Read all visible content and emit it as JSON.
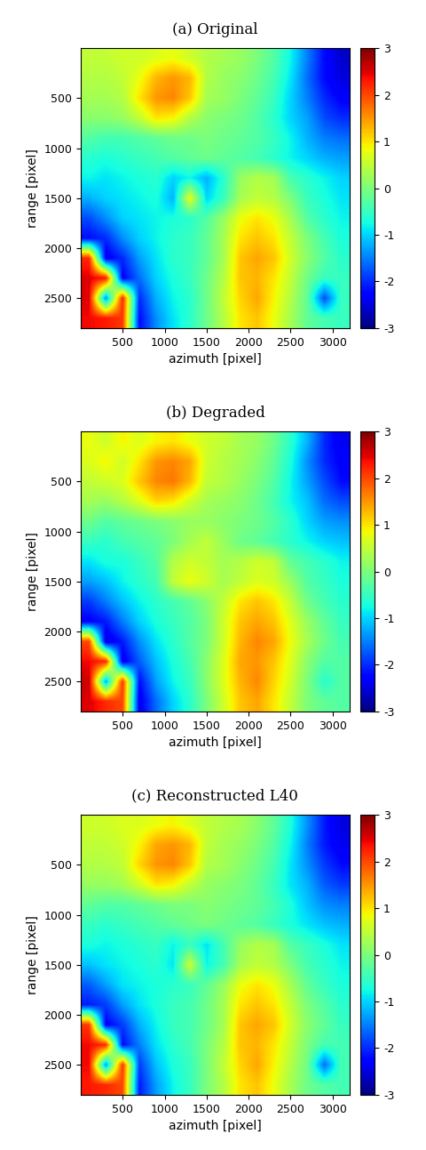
{
  "chart_data": [
    {
      "type": "heatmap",
      "title": "(a) Original",
      "x_label": "azimuth [pixel]",
      "y_label": "range [pixel]",
      "xlim": [
        0,
        3200
      ],
      "ylim": [
        2800,
        0
      ],
      "xticks": [
        500,
        1000,
        1500,
        2000,
        2500,
        3000
      ],
      "yticks": [
        500,
        1000,
        1500,
        2000,
        2500
      ],
      "color": "jet",
      "colorbar_range": [
        -3,
        3
      ],
      "colorbar_ticks": [
        -3,
        -2,
        -1,
        0,
        1,
        2,
        3
      ],
      "cells": [
        [
          0.5,
          0.5,
          0.6,
          0.6,
          0.7,
          0.8,
          0.6,
          0.4,
          0.3,
          0.2,
          0.0,
          -0.3,
          -0.8,
          -1.5,
          -2.2,
          -2.6
        ],
        [
          0.4,
          0.4,
          0.5,
          0.8,
          1.3,
          1.5,
          1.3,
          0.4,
          0.2,
          0.1,
          -0.1,
          -0.4,
          -0.9,
          -1.6,
          -2.2,
          -2.5
        ],
        [
          0.3,
          0.3,
          0.4,
          1.0,
          1.5,
          1.6,
          1.2,
          0.3,
          0.2,
          0.0,
          -0.2,
          -0.5,
          -1.0,
          -1.5,
          -2.0,
          -2.3
        ],
        [
          0.1,
          0.1,
          0.2,
          0.5,
          1.0,
          0.9,
          0.4,
          0.1,
          0.0,
          -0.1,
          -0.3,
          -0.6,
          -1.0,
          -1.3,
          -1.8,
          -2.0
        ],
        [
          -0.3,
          -0.4,
          -0.4,
          -0.3,
          -0.2,
          -0.1,
          -0.1,
          0.0,
          -0.1,
          -0.2,
          -0.3,
          -0.5,
          -0.8,
          -1.2,
          -1.5,
          -1.6
        ],
        [
          -0.6,
          -0.7,
          -0.6,
          -0.5,
          -0.4,
          -0.3,
          -0.2,
          -0.1,
          -0.2,
          -0.3,
          -0.4,
          -0.6,
          -0.8,
          -1.0,
          -1.2,
          -1.3
        ],
        [
          -0.8,
          -0.9,
          -0.8,
          -0.7,
          -0.6,
          -1.0,
          -0.8,
          -1.2,
          -0.6,
          0.2,
          0.4,
          0.3,
          -0.4,
          -0.6,
          -0.8,
          -1.0
        ],
        [
          -1.2,
          -1.0,
          -0.9,
          -0.8,
          -0.7,
          -1.2,
          0.8,
          -1.0,
          -0.5,
          0.3,
          0.5,
          0.4,
          0.0,
          -0.5,
          -0.7,
          -0.9
        ],
        [
          -1.8,
          -1.4,
          -1.0,
          -0.9,
          -0.8,
          -0.7,
          -0.6,
          -0.3,
          0.2,
          0.8,
          1.0,
          0.8,
          0.3,
          -0.3,
          -0.6,
          -0.8
        ],
        [
          -2.2,
          -2.0,
          -1.4,
          -1.0,
          -0.8,
          -0.6,
          -0.5,
          -0.2,
          0.3,
          1.0,
          1.2,
          1.0,
          0.5,
          0.0,
          -0.4,
          -0.7
        ],
        [
          2.2,
          -2.4,
          -2.0,
          -1.3,
          -0.9,
          -0.6,
          -0.5,
          -0.2,
          0.3,
          1.2,
          1.4,
          1.2,
          0.6,
          0.1,
          -0.3,
          -0.6
        ],
        [
          2.5,
          2.3,
          -2.3,
          -1.6,
          -1.0,
          -0.7,
          -0.5,
          -0.1,
          0.4,
          1.2,
          1.3,
          1.0,
          0.5,
          -0.1,
          -0.5,
          -0.5
        ],
        [
          2.5,
          -1.5,
          2.2,
          -2.0,
          -1.2,
          -0.8,
          -0.6,
          -0.1,
          0.5,
          1.1,
          1.4,
          0.9,
          0.4,
          -0.2,
          -1.8,
          -0.5
        ],
        [
          2.4,
          2.3,
          2.1,
          -2.2,
          -1.4,
          -0.9,
          -0.6,
          -0.1,
          0.4,
          1.0,
          1.2,
          0.8,
          0.3,
          -0.2,
          -0.4,
          -0.5
        ]
      ]
    },
    {
      "type": "heatmap",
      "title": "(b) Degraded",
      "x_label": "azimuth [pixel]",
      "y_label": "range [pixel]",
      "xlim": [
        0,
        3200
      ],
      "ylim": [
        2800,
        0
      ],
      "xticks": [
        500,
        1000,
        1500,
        2000,
        2500,
        3000
      ],
      "yticks": [
        500,
        1000,
        1500,
        2000,
        2500
      ],
      "color": "jet",
      "colorbar_range": [
        -3,
        3
      ],
      "colorbar_ticks": [
        -3,
        -2,
        -1,
        0,
        1,
        2,
        3
      ],
      "cells": [
        [
          0.8,
          0.6,
          0.9,
          0.7,
          0.9,
          1.0,
          0.8,
          0.6,
          0.5,
          0.3,
          0.2,
          -0.1,
          -0.6,
          -1.2,
          -2.0,
          -2.4
        ],
        [
          0.7,
          0.9,
          0.6,
          1.0,
          1.5,
          1.6,
          1.4,
          0.6,
          0.4,
          0.3,
          0.1,
          -0.2,
          -0.7,
          -1.4,
          -2.0,
          -2.3
        ],
        [
          0.5,
          0.6,
          0.7,
          1.2,
          1.6,
          1.7,
          1.3,
          0.5,
          0.4,
          0.2,
          0.0,
          -0.3,
          -0.8,
          -1.3,
          -1.8,
          -2.2
        ],
        [
          0.3,
          0.2,
          0.4,
          0.7,
          1.1,
          1.0,
          0.6,
          0.3,
          0.2,
          0.1,
          -0.1,
          -0.4,
          -0.8,
          -1.1,
          -1.6,
          -1.8
        ],
        [
          -0.1,
          -0.3,
          -0.2,
          -0.1,
          0.0,
          0.1,
          0.2,
          0.2,
          0.1,
          0.0,
          -0.1,
          -0.3,
          -0.6,
          -1.0,
          -1.3,
          -1.4
        ],
        [
          -0.5,
          -0.6,
          -0.4,
          -0.3,
          -0.2,
          0.0,
          0.3,
          0.5,
          0.2,
          -0.1,
          -0.2,
          -0.4,
          -0.6,
          -0.8,
          -1.0,
          -1.1
        ],
        [
          -0.9,
          -0.7,
          -0.7,
          -0.5,
          -0.3,
          0.4,
          0.6,
          0.5,
          0.3,
          0.4,
          0.6,
          0.5,
          -0.2,
          -0.4,
          -0.6,
          -0.8
        ],
        [
          -1.3,
          -1.1,
          -0.8,
          -0.6,
          -0.4,
          0.5,
          0.8,
          0.6,
          0.3,
          0.5,
          0.7,
          0.6,
          0.2,
          -0.3,
          -0.5,
          -0.7
        ],
        [
          -1.9,
          -1.5,
          -1.1,
          -0.8,
          -0.6,
          -0.4,
          -0.2,
          0.1,
          0.5,
          1.0,
          1.2,
          1.0,
          0.5,
          -0.1,
          -0.4,
          -0.6
        ],
        [
          -2.3,
          -2.1,
          -1.5,
          -1.0,
          -0.7,
          -0.5,
          -0.3,
          0.0,
          0.6,
          1.2,
          1.4,
          1.2,
          0.7,
          0.2,
          -0.2,
          -0.5
        ],
        [
          2.0,
          -2.5,
          -2.1,
          -1.4,
          -0.9,
          -0.6,
          -0.3,
          0.0,
          0.6,
          1.3,
          1.6,
          1.4,
          0.8,
          0.3,
          -0.1,
          -0.4
        ],
        [
          2.4,
          2.2,
          -2.4,
          -1.7,
          -1.1,
          -0.7,
          -0.4,
          0.1,
          0.7,
          1.4,
          1.5,
          1.2,
          0.7,
          0.1,
          -0.3,
          -0.3
        ],
        [
          2.6,
          -1.3,
          2.1,
          -2.2,
          -1.3,
          -0.8,
          -0.5,
          0.1,
          0.7,
          1.3,
          1.6,
          1.1,
          0.6,
          0.0,
          -0.6,
          -0.3
        ],
        [
          2.5,
          2.2,
          2.0,
          -2.4,
          -1.6,
          -1.0,
          -0.6,
          0.0,
          0.6,
          1.2,
          1.4,
          1.0,
          0.5,
          0.0,
          -0.2,
          -0.3
        ]
      ]
    },
    {
      "type": "heatmap",
      "title": "(c) Reconstructed L40",
      "x_label": "azimuth [pixel]",
      "y_label": "range [pixel]",
      "xlim": [
        0,
        3200
      ],
      "ylim": [
        2800,
        0
      ],
      "xticks": [
        500,
        1000,
        1500,
        2000,
        2500,
        3000
      ],
      "yticks": [
        500,
        1000,
        1500,
        2000,
        2500
      ],
      "color": "jet",
      "colorbar_range": [
        -3,
        3
      ],
      "colorbar_ticks": [
        -3,
        -2,
        -1,
        0,
        1,
        2,
        3
      ],
      "cells": [
        [
          0.6,
          0.6,
          0.7,
          0.7,
          0.8,
          0.9,
          0.7,
          0.5,
          0.4,
          0.3,
          0.1,
          -0.2,
          -0.7,
          -1.4,
          -2.1,
          -2.5
        ],
        [
          0.5,
          0.5,
          0.6,
          0.9,
          1.4,
          1.5,
          1.3,
          0.5,
          0.3,
          0.2,
          0.0,
          -0.3,
          -0.8,
          -1.5,
          -2.1,
          -2.4
        ],
        [
          0.4,
          0.4,
          0.5,
          1.1,
          1.5,
          1.6,
          1.2,
          0.4,
          0.3,
          0.1,
          -0.1,
          -0.4,
          -0.9,
          -1.4,
          -1.9,
          -2.2
        ],
        [
          0.2,
          0.2,
          0.3,
          0.6,
          1.0,
          0.9,
          0.5,
          0.2,
          0.1,
          0.0,
          -0.2,
          -0.5,
          -0.9,
          -1.2,
          -1.7,
          -1.9
        ],
        [
          -0.2,
          -0.3,
          -0.3,
          -0.2,
          -0.1,
          0.0,
          0.0,
          0.1,
          0.0,
          -0.1,
          -0.2,
          -0.4,
          -0.7,
          -1.1,
          -1.4,
          -1.5
        ],
        [
          -0.5,
          -0.6,
          -0.5,
          -0.4,
          -0.3,
          -0.2,
          -0.1,
          0.0,
          -0.1,
          -0.2,
          -0.3,
          -0.5,
          -0.7,
          -0.9,
          -1.1,
          -1.2
        ],
        [
          -0.7,
          -0.8,
          -0.7,
          -0.6,
          -0.5,
          -0.8,
          -0.5,
          -0.9,
          -0.4,
          0.2,
          0.4,
          0.3,
          -0.3,
          -0.5,
          -0.7,
          -0.9
        ],
        [
          -1.1,
          -0.9,
          -0.8,
          -0.7,
          -0.6,
          -0.9,
          0.6,
          -0.8,
          -0.4,
          0.3,
          0.5,
          0.4,
          0.0,
          -0.4,
          -0.6,
          -0.8
        ],
        [
          -1.7,
          -1.3,
          -0.9,
          -0.8,
          -0.7,
          -0.6,
          -0.5,
          -0.2,
          0.2,
          0.8,
          1.0,
          0.8,
          0.3,
          -0.2,
          -0.5,
          -0.7
        ],
        [
          -2.1,
          -1.9,
          -1.3,
          -0.9,
          -0.7,
          -0.5,
          -0.4,
          -0.1,
          0.3,
          1.0,
          1.2,
          1.0,
          0.5,
          0.0,
          -0.3,
          -0.6
        ],
        [
          2.1,
          -2.3,
          -1.9,
          -1.2,
          -0.8,
          -0.5,
          -0.4,
          -0.1,
          0.3,
          1.2,
          1.4,
          1.2,
          0.6,
          0.1,
          -0.2,
          -0.5
        ],
        [
          2.4,
          2.2,
          -2.2,
          -1.5,
          -0.9,
          -0.6,
          -0.4,
          0.0,
          0.4,
          1.2,
          1.3,
          1.0,
          0.5,
          0.0,
          -0.4,
          -0.4
        ],
        [
          2.4,
          -1.4,
          2.1,
          -1.9,
          -1.1,
          -0.7,
          -0.5,
          0.0,
          0.5,
          1.1,
          1.4,
          0.9,
          0.4,
          -0.1,
          -1.6,
          -0.4
        ],
        [
          2.3,
          2.2,
          2.0,
          -2.1,
          -1.3,
          -0.8,
          -0.5,
          0.0,
          0.4,
          1.0,
          1.2,
          0.8,
          0.3,
          -0.1,
          -0.3,
          -0.4
        ]
      ]
    }
  ]
}
